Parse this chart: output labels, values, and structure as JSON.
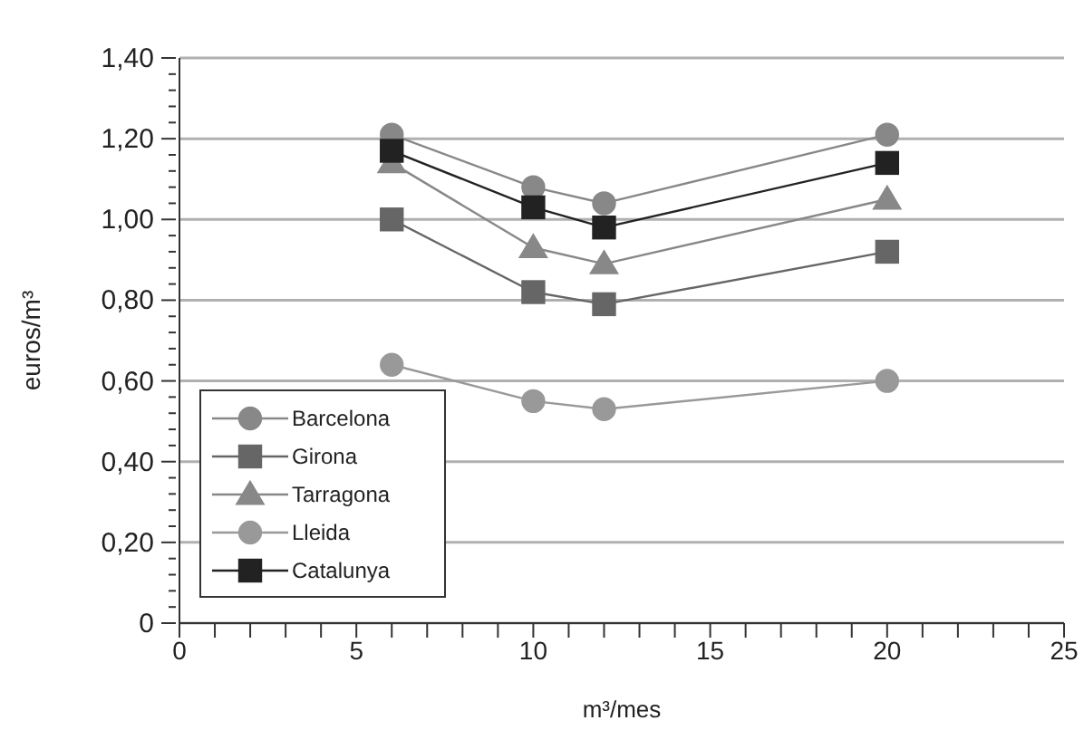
{
  "chart_data": {
    "type": "line",
    "xlabel": "m³/mes",
    "ylabel": "euros/m³",
    "x": [
      6,
      10,
      12,
      20
    ],
    "series": [
      {
        "name": "Barcelona",
        "color": "#888888",
        "marker": "circle",
        "values": [
          1.21,
          1.08,
          1.04,
          1.21
        ]
      },
      {
        "name": "Girona",
        "color": "#666666",
        "marker": "square",
        "values": [
          1.0,
          0.82,
          0.79,
          0.92
        ]
      },
      {
        "name": "Tarragona",
        "color": "#888888",
        "marker": "triangle",
        "values": [
          1.14,
          0.93,
          0.89,
          1.05
        ]
      },
      {
        "name": "Lleida",
        "color": "#999999",
        "marker": "circle",
        "values": [
          0.64,
          0.55,
          0.53,
          0.6
        ]
      },
      {
        "name": "Catalunya",
        "color": "#222222",
        "marker": "square",
        "values": [
          1.17,
          1.03,
          0.98,
          1.14
        ]
      }
    ],
    "xlim": [
      0,
      25
    ],
    "xticks": [
      0,
      {
        "value": 1,
        "label": null
      },
      {
        "value": 2,
        "label": null
      },
      {
        "value": 3,
        "label": null
      },
      {
        "value": 4,
        "label": null
      },
      5,
      {
        "value": 6,
        "label": null
      },
      {
        "value": 7,
        "label": null
      },
      {
        "value": 8,
        "label": null
      },
      {
        "value": 9,
        "label": null
      },
      10,
      {
        "value": 11,
        "label": null
      },
      {
        "value": 12,
        "label": null
      },
      {
        "value": 13,
        "label": null
      },
      {
        "value": 14,
        "label": null
      },
      15,
      {
        "value": 16,
        "label": null
      },
      {
        "value": 17,
        "label": null
      },
      {
        "value": 18,
        "label": null
      },
      {
        "value": 19,
        "label": null
      },
      20,
      {
        "value": 21,
        "label": null
      },
      {
        "value": 22,
        "label": null
      },
      {
        "value": 23,
        "label": null
      },
      {
        "value": 24,
        "label": null
      },
      25
    ],
    "ylim": [
      0,
      1.4
    ],
    "yticks": [
      0,
      {
        "value": 0.04,
        "label": null
      },
      {
        "value": 0.08,
        "label": null
      },
      {
        "value": 0.12,
        "label": null
      },
      {
        "value": 0.16,
        "label": null
      },
      {
        "value": 0.2,
        "label": "0,20"
      },
      {
        "value": 0.24,
        "label": null
      },
      {
        "value": 0.28,
        "label": null
      },
      {
        "value": 0.32,
        "label": null
      },
      {
        "value": 0.36,
        "label": null
      },
      {
        "value": 0.4,
        "label": "0,40"
      },
      {
        "value": 0.44,
        "label": null
      },
      {
        "value": 0.48,
        "label": null
      },
      {
        "value": 0.52,
        "label": null
      },
      {
        "value": 0.56,
        "label": null
      },
      {
        "value": 0.6,
        "label": "0,60"
      },
      {
        "value": 0.64,
        "label": null
      },
      {
        "value": 0.68,
        "label": null
      },
      {
        "value": 0.72,
        "label": null
      },
      {
        "value": 0.76,
        "label": null
      },
      {
        "value": 0.8,
        "label": "0,80"
      },
      {
        "value": 0.84,
        "label": null
      },
      {
        "value": 0.88,
        "label": null
      },
      {
        "value": 0.92,
        "label": null
      },
      {
        "value": 0.96,
        "label": null
      },
      {
        "value": 1.0,
        "label": "1,00"
      },
      {
        "value": 1.04,
        "label": null
      },
      {
        "value": 1.08,
        "label": null
      },
      {
        "value": 1.12,
        "label": null
      },
      {
        "value": 1.16,
        "label": null
      },
      {
        "value": 1.2,
        "label": "1,20"
      },
      {
        "value": 1.24,
        "label": null
      },
      {
        "value": 1.28,
        "label": null
      },
      {
        "value": 1.32,
        "label": null
      },
      {
        "value": 1.36,
        "label": null
      },
      {
        "value": 1.4,
        "label": "1,40"
      }
    ],
    "grid": "y",
    "legend": "bottom left"
  }
}
